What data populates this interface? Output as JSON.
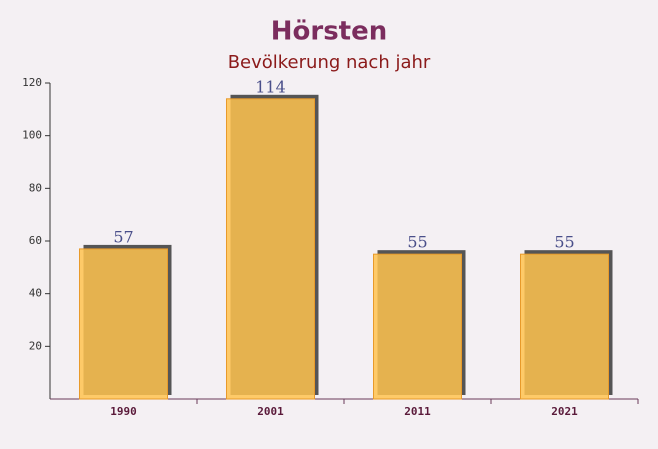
{
  "chart_data": {
    "type": "bar",
    "title": "Hörsten",
    "subtitle": "Bevölkerung nach jahr",
    "categories": [
      "1990",
      "2001",
      "2011",
      "2021"
    ],
    "values": [
      57,
      114,
      55,
      55
    ],
    "color": "#ffc34f",
    "ylim": [
      0,
      120
    ],
    "yticks": [
      20,
      40,
      60,
      80,
      100,
      120
    ]
  }
}
